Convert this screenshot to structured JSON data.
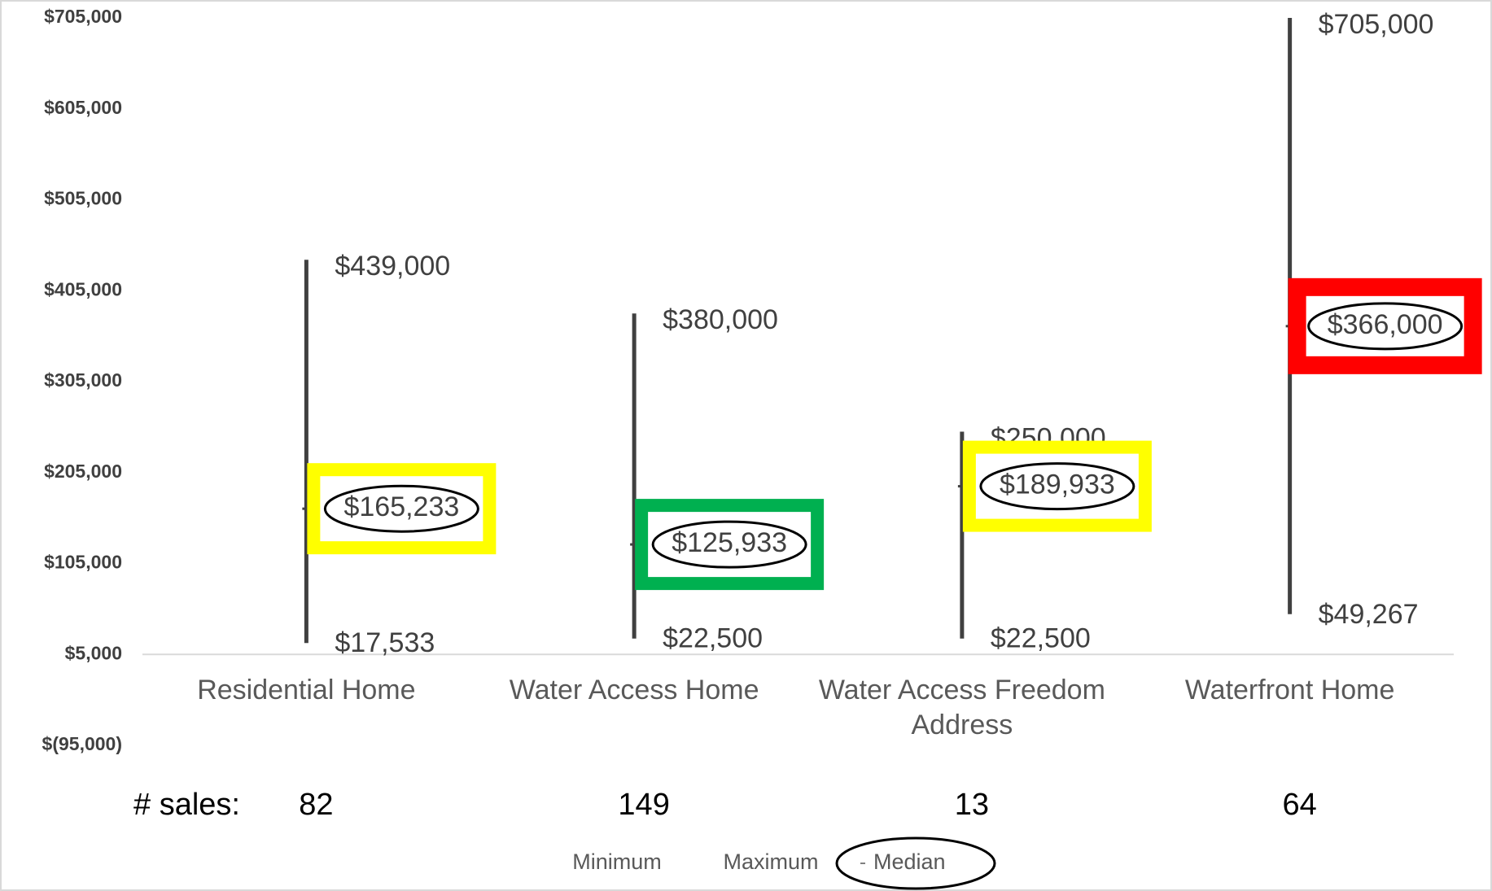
{
  "chart_data": {
    "type": "hilo",
    "categories": [
      "Residential Home",
      "Water Access Home",
      "Water Access Freedom Address",
      "Waterfront Home"
    ],
    "series": [
      {
        "name": "Minimum",
        "color": "#404040",
        "values": [
          17533,
          22500,
          22500,
          49267
        ],
        "value_labels": [
          "$17,533",
          "$22,500",
          "$22,500",
          "$49,267"
        ]
      },
      {
        "name": "Maximum",
        "color": "#404040",
        "values": [
          439000,
          380000,
          250000,
          705000
        ],
        "value_labels": [
          "$439,000",
          "$380,000",
          "$250,000",
          "$705,000"
        ]
      },
      {
        "name": "Median",
        "color": "#404040",
        "values": [
          165233,
          125933,
          189933,
          366000
        ],
        "value_labels": [
          "$165,233",
          "$125,933",
          "$189,933",
          "$366,000"
        ]
      }
    ],
    "highlight_colors": [
      "#ffff00",
      "#00b050",
      "#ffff00",
      "#ff0000"
    ],
    "ylim": [
      -95000,
      705000
    ],
    "yticks": [
      {
        "value": -95000,
        "label": "$(95,000)"
      },
      {
        "value": 5000,
        "label": "$5,000"
      },
      {
        "value": 105000,
        "label": "$105,000"
      },
      {
        "value": 205000,
        "label": "$205,000"
      },
      {
        "value": 305000,
        "label": "$305,000"
      },
      {
        "value": 405000,
        "label": "$405,000"
      },
      {
        "value": 505000,
        "label": "$505,000"
      },
      {
        "value": 605000,
        "label": "$605,000"
      },
      {
        "value": 705000,
        "label": "$705,000"
      }
    ],
    "axis_crosses_at": 5000,
    "sales_label": "# sales:",
    "sales": [
      82,
      149,
      13,
      64
    ]
  }
}
